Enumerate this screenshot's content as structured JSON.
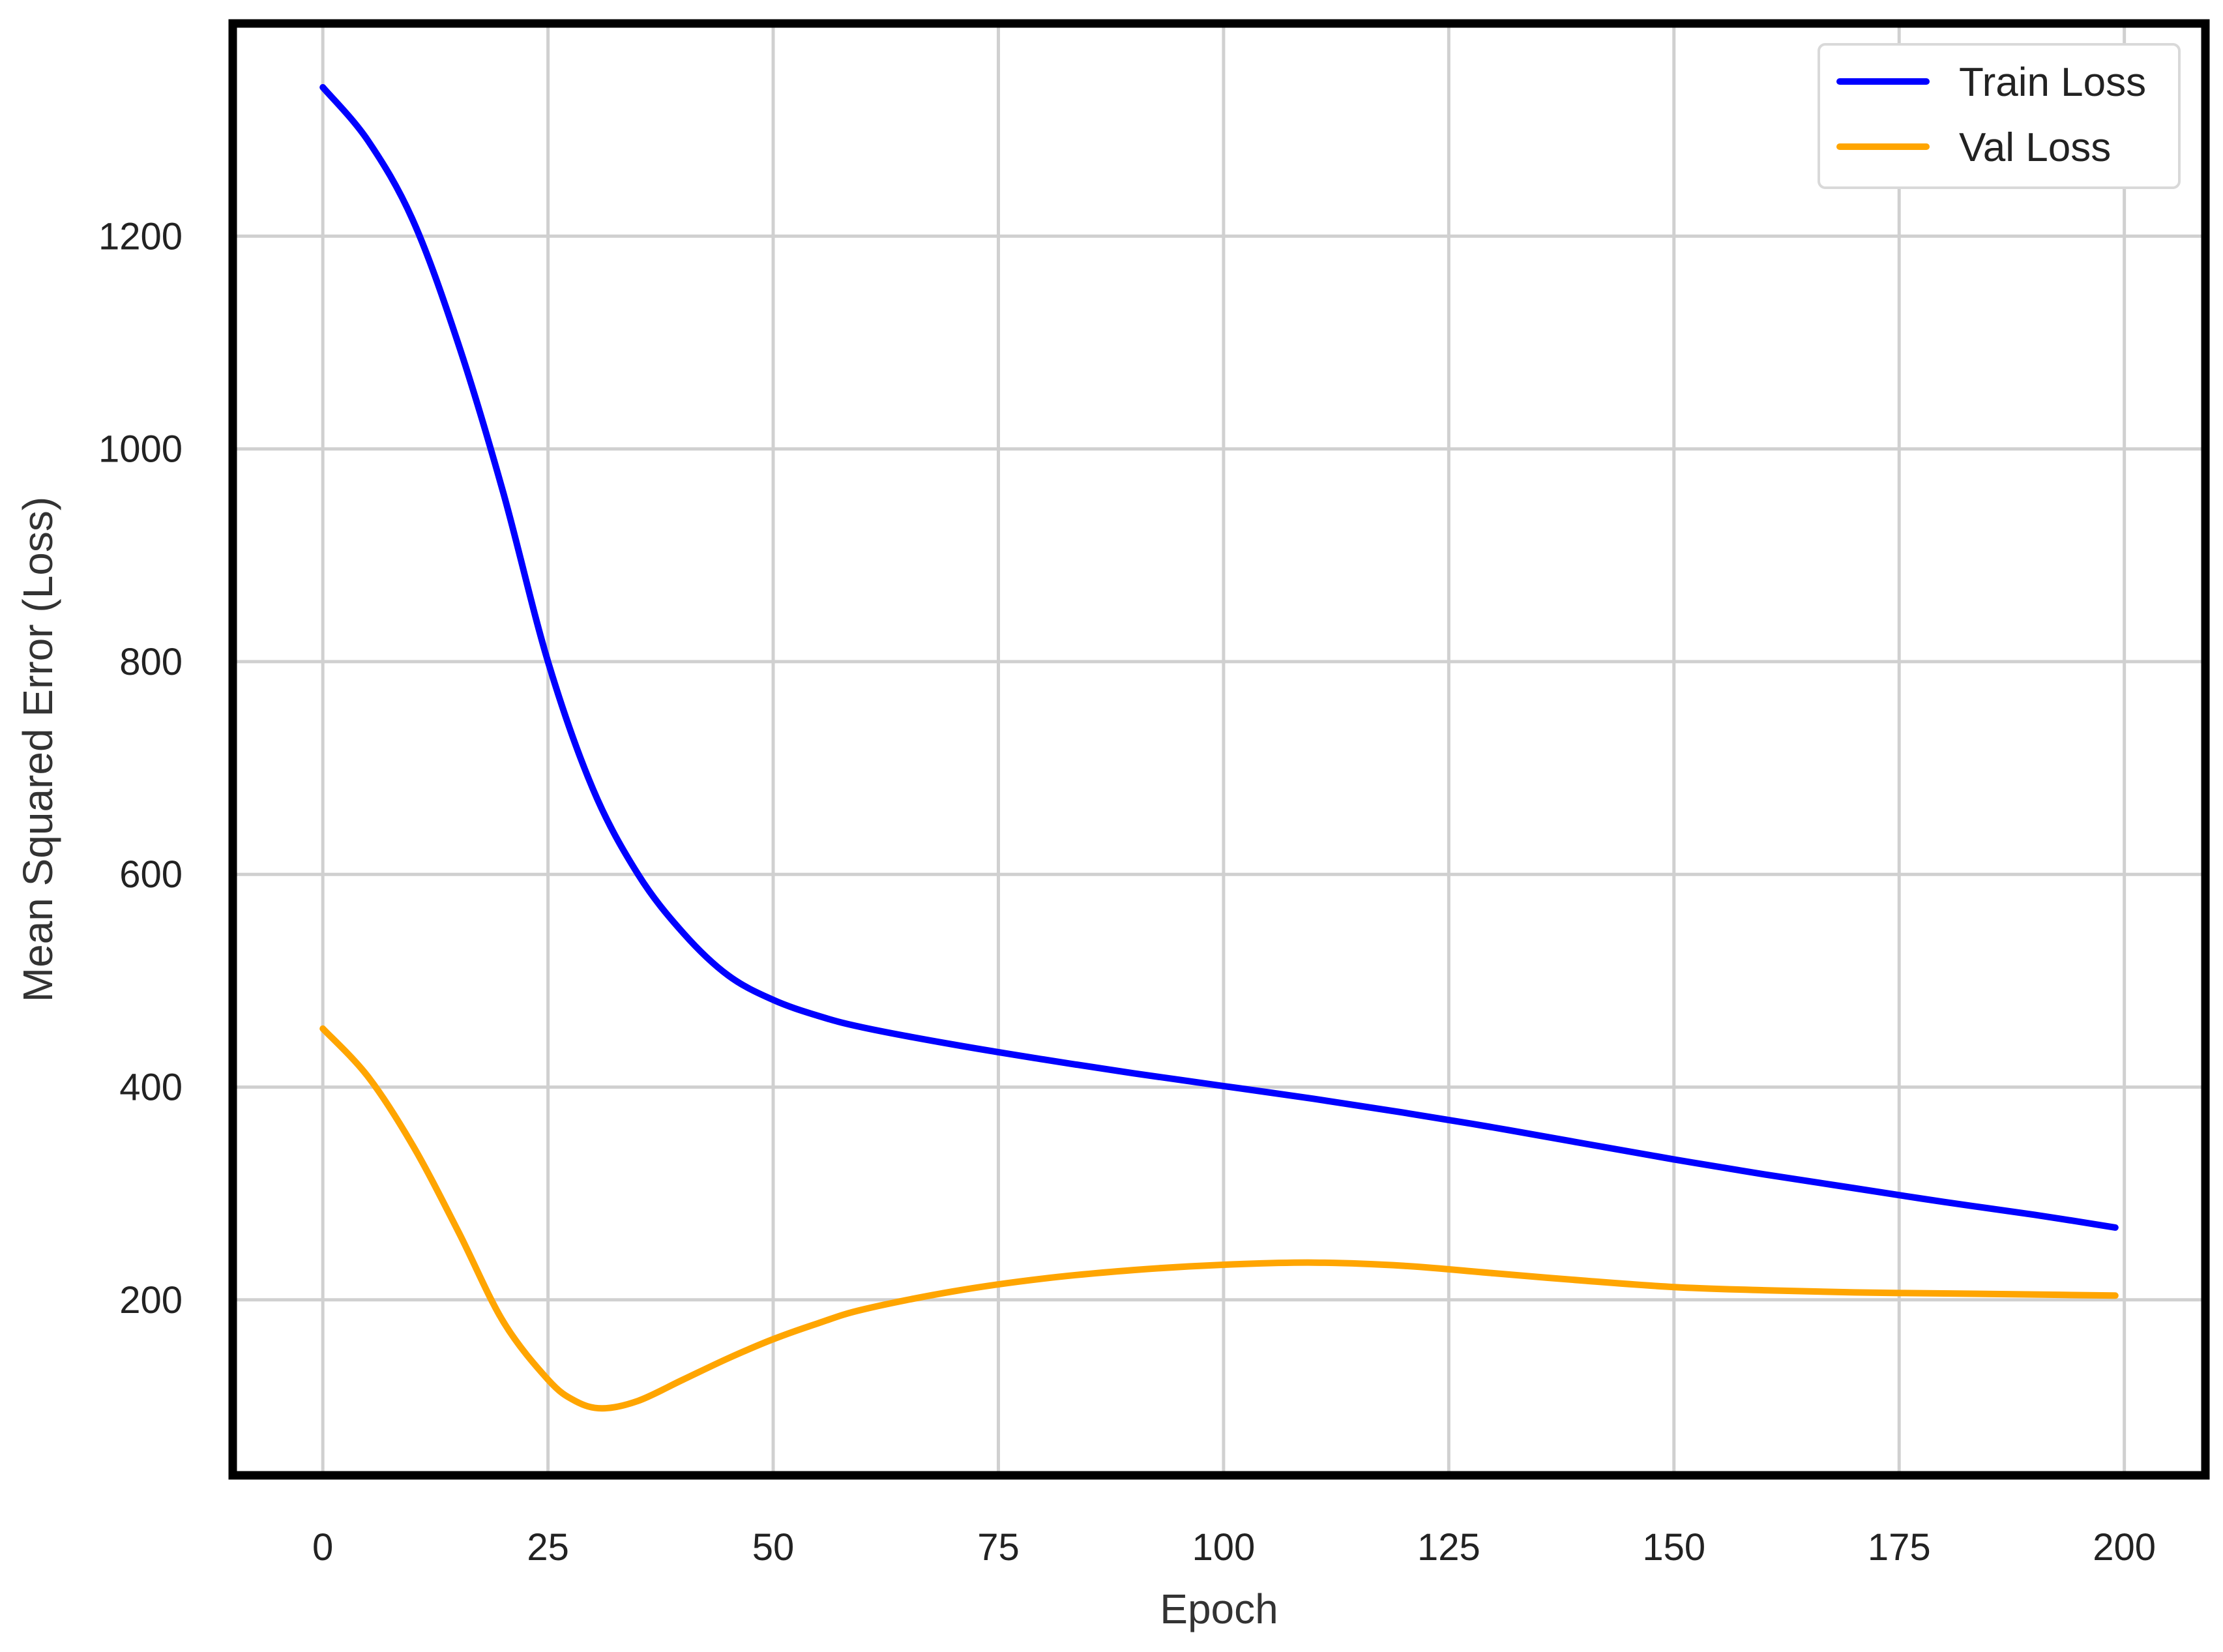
{
  "chart_data": {
    "type": "line",
    "title": "",
    "xlabel": "Epoch",
    "ylabel": "Mean Squared Error (Loss)",
    "xlim": [
      -10,
      209
    ],
    "ylim": [
      35,
      1400
    ],
    "xticks": [
      0,
      25,
      50,
      75,
      100,
      125,
      150,
      175,
      200
    ],
    "yticks": [
      200,
      400,
      600,
      800,
      1000,
      1200
    ],
    "grid": true,
    "legend_position": "top-right",
    "series": [
      {
        "name": "Train Loss",
        "color": "#0000ff",
        "x": [
          0,
          5,
          10,
          15,
          20,
          25,
          30,
          35,
          40,
          45,
          50,
          55,
          60,
          70,
          80,
          90,
          100,
          110,
          120,
          130,
          140,
          150,
          160,
          170,
          180,
          190,
          199
        ],
        "y": [
          1340,
          1290,
          1215,
          1100,
          960,
          800,
          680,
          600,
          545,
          505,
          482,
          467,
          456,
          440,
          426,
          413,
          401,
          389,
          376,
          362,
          347,
          332,
          318,
          305,
          292,
          280,
          268
        ]
      },
      {
        "name": "Val Loss",
        "color": "#ffa500",
        "x": [
          0,
          5,
          10,
          15,
          20,
          25,
          28,
          31,
          35,
          40,
          45,
          50,
          55,
          60,
          70,
          80,
          90,
          100,
          110,
          120,
          130,
          140,
          150,
          160,
          170,
          180,
          190,
          199
        ],
        "y": [
          455,
          410,
          345,
          265,
          180,
          125,
          105,
          98,
          105,
          125,
          145,
          163,
          178,
          191,
          208,
          220,
          228,
          233,
          235,
          232,
          225,
          218,
          212,
          209,
          207,
          206,
          205,
          204
        ]
      }
    ]
  }
}
